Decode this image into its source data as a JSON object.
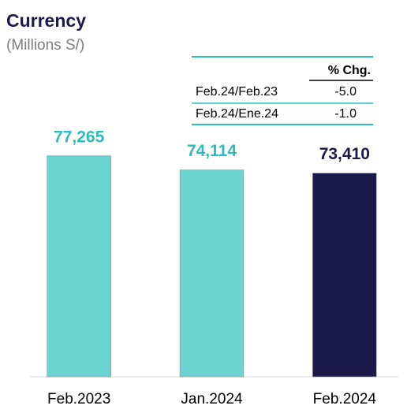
{
  "chart_data": {
    "type": "bar",
    "title": "Currency",
    "subtitle": "(Millions S/)",
    "categories": [
      "Feb.2023",
      "Jan.2024",
      "Feb.2024"
    ],
    "values": [
      77265,
      74114,
      73410
    ],
    "value_labels": [
      "77,265",
      "74,114",
      "73,410"
    ],
    "colors": [
      "#6dd5d1",
      "#6dd5d1",
      "#1b1a4b"
    ],
    "label_colors": [
      "#2bbdbb",
      "#2bbdbb",
      "#1b1a4b"
    ],
    "ylim": [
      28000,
      105000
    ]
  },
  "table": {
    "header": "% Chg.",
    "rows": [
      [
        "Feb.24/Feb.23",
        "-5.0"
      ],
      [
        "Feb.24/Ene.24",
        "-1.0"
      ]
    ]
  }
}
